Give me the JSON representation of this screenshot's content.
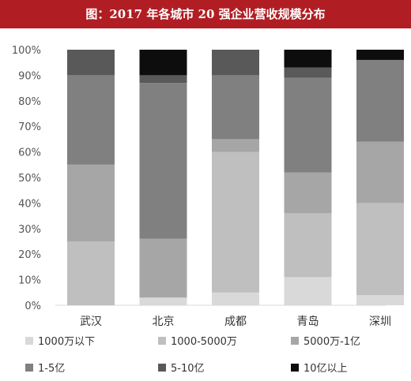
{
  "header": {
    "title": "图：2017 年各城市 20 强企业营收规模分布",
    "color": "#b01e23"
  },
  "chart_data": {
    "type": "bar",
    "stacked": true,
    "title": "图：2017 年各城市 20 强企业营收规模分布",
    "categories": [
      "武汉",
      "北京",
      "成都",
      "青岛",
      "深圳"
    ],
    "ylim": [
      0,
      100
    ],
    "y_ticks": [
      "0%",
      "10%",
      "20%",
      "30%",
      "40%",
      "50%",
      "60%",
      "70%",
      "80%",
      "90%",
      "100%"
    ],
    "grid": false,
    "legend_position": "bottom",
    "series": [
      {
        "name": "1000万以下",
        "color": "#d9d9d9",
        "values": [
          0,
          3,
          5,
          11,
          4
        ]
      },
      {
        "name": "1000-5000万",
        "color": "#bfbfbf",
        "values": [
          25,
          0,
          55,
          25,
          36
        ]
      },
      {
        "name": "5000万-1亿",
        "color": "#a6a6a6",
        "values": [
          30,
          23,
          5,
          16,
          24
        ]
      },
      {
        "name": "1-5亿",
        "color": "#808080",
        "values": [
          35,
          61,
          25,
          37,
          32
        ]
      },
      {
        "name": "5-10亿",
        "color": "#595959",
        "values": [
          10,
          3,
          10,
          4,
          0
        ]
      },
      {
        "name": "10亿以上",
        "color": "#0d0d0d",
        "values": [
          0,
          10,
          0,
          7,
          4
        ]
      }
    ]
  }
}
